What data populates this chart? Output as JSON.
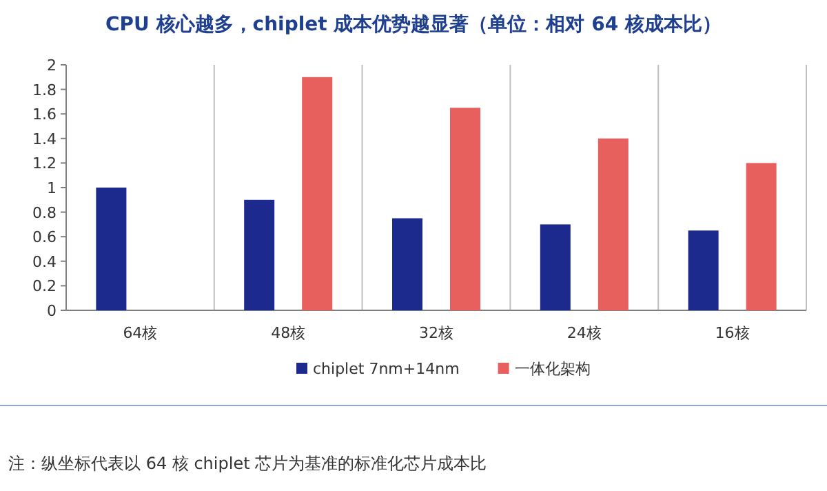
{
  "chart_data": {
    "type": "bar",
    "title": "CPU 核心越多，chiplet 成本优势越显著（单位：相对 64 核成本比）",
    "categories": [
      "64核",
      "48核",
      "32核",
      "24核",
      "16核"
    ],
    "series": [
      {
        "name": "chiplet 7nm+14nm",
        "color": "#1b2a8c",
        "values": [
          1.0,
          0.9,
          0.75,
          0.7,
          0.65
        ]
      },
      {
        "name": "一体化架构",
        "color": "#e8605e",
        "values": [
          null,
          1.9,
          1.65,
          1.4,
          1.2
        ]
      }
    ],
    "ylim": [
      0,
      2
    ],
    "yticks": [
      0,
      0.2,
      0.4,
      0.6,
      0.8,
      1,
      1.2,
      1.4,
      1.6,
      1.8,
      2
    ],
    "grid": "x",
    "legend": "bottom",
    "annotations": [
      "注：纵坐标代表以 64 核 chiplet 芯片为基准的标准化芯片成本比"
    ]
  }
}
